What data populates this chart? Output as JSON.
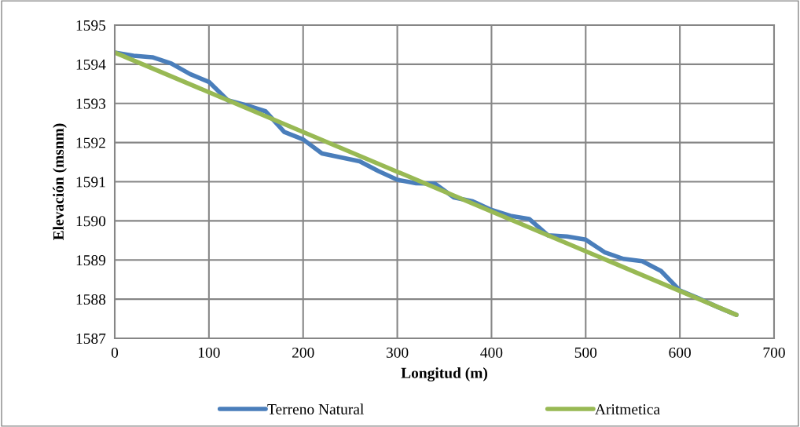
{
  "chart_data": {
    "type": "line",
    "xlabel": "Longitud (m)",
    "ylabel": "Elevación (msnm)",
    "xlim": [
      0,
      700
    ],
    "xticks": [
      0,
      100,
      200,
      300,
      400,
      500,
      600,
      700
    ],
    "ylim": [
      1587,
      1595
    ],
    "yticks": [
      1587,
      1588,
      1589,
      1590,
      1591,
      1592,
      1593,
      1594,
      1595
    ],
    "grid": true,
    "legend": "bottom",
    "marker": "none",
    "line_style": "solid",
    "series": [
      {
        "name": "Terreno Natural",
        "color": "#4a7ebb",
        "x": [
          0,
          20,
          40,
          60,
          80,
          100,
          120,
          140,
          160,
          180,
          200,
          220,
          240,
          260,
          280,
          300,
          320,
          340,
          360,
          380,
          400,
          420,
          440,
          460,
          480,
          500,
          520,
          540,
          560,
          580,
          600,
          620,
          640,
          660
        ],
        "values": [
          1594.3,
          1594.22,
          1594.18,
          1594.02,
          1593.75,
          1593.55,
          1593.08,
          1592.95,
          1592.8,
          1592.27,
          1592.08,
          1591.72,
          1591.62,
          1591.52,
          1591.27,
          1591.05,
          1590.96,
          1590.95,
          1590.6,
          1590.5,
          1590.28,
          1590.13,
          1590.05,
          1589.63,
          1589.6,
          1589.52,
          1589.2,
          1589.03,
          1588.97,
          1588.72,
          1588.22,
          1588.02,
          1587.8,
          1587.6
        ]
      },
      {
        "name": "Aritmetica",
        "color": "#98b954",
        "x": [
          0,
          660
        ],
        "values": [
          1594.3,
          1587.6
        ]
      }
    ]
  }
}
